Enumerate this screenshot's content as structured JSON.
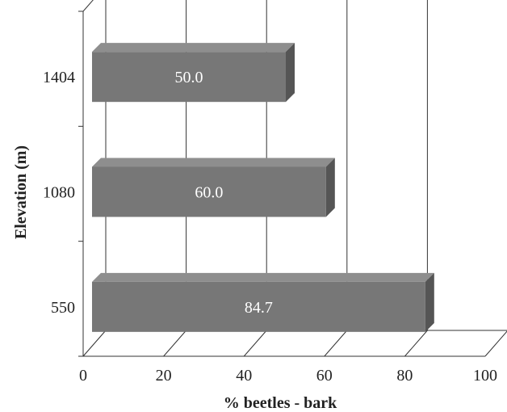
{
  "chart_data": {
    "type": "bar",
    "orientation": "horizontal",
    "style": "3d",
    "categories": [
      "1404",
      "1080",
      "550"
    ],
    "values": [
      50.0,
      60.0,
      84.7
    ],
    "value_labels": [
      "50.0",
      "60.0",
      "84.7"
    ],
    "xlabel": "% beetles - bark",
    "ylabel": "Elevation (m)",
    "xlim": [
      0,
      100
    ],
    "xticks": [
      "0",
      "20",
      "40",
      "60",
      "80",
      "100"
    ],
    "grid": "vertical",
    "legend": "none",
    "bar_color": "#777777",
    "bar_top_color": "#8e8e8e",
    "bar_side_color": "#555555"
  }
}
